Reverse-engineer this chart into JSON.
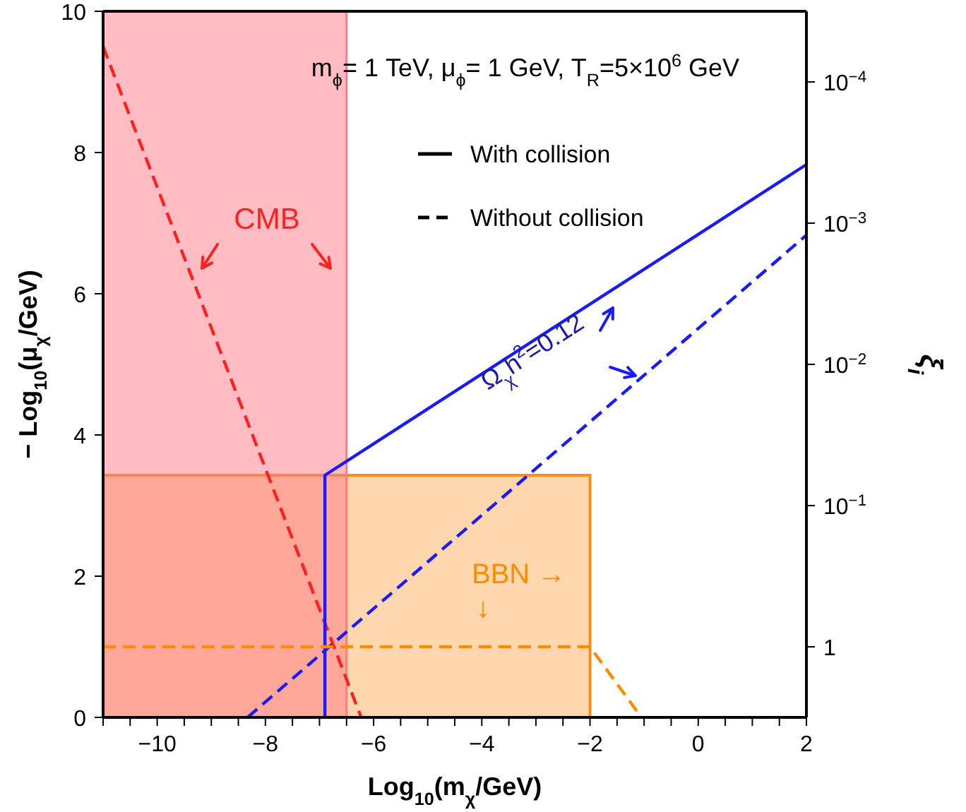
{
  "chart_data": {
    "type": "line",
    "xlabel": "Log$_{10}$(m$_{χ}$/GeV)",
    "ylabel": "− Log$_{10}$(μ$_{χ}$/GeV)",
    "y2label": "ξ$_{i}$",
    "xlim": [
      -11,
      2
    ],
    "xticks": [
      {
        "value": -11,
        "label": null
      },
      {
        "value": -10.5,
        "label": null
      },
      {
        "value": -10,
        "label": "−10"
      },
      {
        "value": -9.5,
        "label": null
      },
      {
        "value": -9,
        "label": null
      },
      {
        "value": -8.5,
        "label": null
      },
      {
        "value": -8,
        "label": "−8"
      },
      {
        "value": -7.5,
        "label": null
      },
      {
        "value": -7,
        "label": null
      },
      {
        "value": -6.5,
        "label": null
      },
      {
        "value": -6,
        "label": "−6"
      },
      {
        "value": -5.5,
        "label": null
      },
      {
        "value": -5,
        "label": null
      },
      {
        "value": -4.5,
        "label": null
      },
      {
        "value": -4,
        "label": "−4"
      },
      {
        "value": -3.5,
        "label": null
      },
      {
        "value": -3,
        "label": null
      },
      {
        "value": -2.5,
        "label": null
      },
      {
        "value": -2,
        "label": "−2"
      },
      {
        "value": -1.5,
        "label": null
      },
      {
        "value": -1,
        "label": null
      },
      {
        "value": -0.5,
        "label": null
      },
      {
        "value": 0,
        "label": "0"
      },
      {
        "value": 0.5,
        "label": null
      },
      {
        "value": 1,
        "label": null
      },
      {
        "value": 1.5,
        "label": null
      },
      {
        "value": 2,
        "label": "2"
      }
    ],
    "ylim": [
      0,
      10
    ],
    "yticks": [
      0,
      2,
      4,
      6,
      8,
      10
    ],
    "y2lim": [
      3.16,
      3.16e-05
    ],
    "y2ticks": [
      {
        "value": 0.0001,
        "label": "10$^{−4}$"
      },
      {
        "value": 0.001,
        "label": "10$^{−3}$"
      },
      {
        "value": 0.01,
        "label": "10$^{−2}$"
      },
      {
        "value": 0.1,
        "label": "10$^{−1}$"
      },
      {
        "value": 1,
        "label": "1"
      }
    ],
    "log": "y2",
    "bands": [
      {
        "axis": "x",
        "from": -11,
        "to": -6.5,
        "color": "#ff7a85"
      }
    ],
    "series": [
      {
        "color": "#ff2020",
        "line_style": "dashed",
        "x": [
          -11,
          -6.23
        ],
        "values": [
          9.5,
          0
        ]
      },
      {
        "color": "#1a1aff",
        "line_style": "solid",
        "x": [
          -6.9,
          -6.9,
          2
        ],
        "values": [
          0,
          3.43,
          7.83
        ]
      },
      {
        "color": "#1a1aff",
        "line_style": "dashed",
        "x": [
          -8.33,
          2
        ],
        "values": [
          0,
          6.83
        ]
      },
      {
        "color": "#ff8c00",
        "line_style": "dashed",
        "x": [
          -11,
          -2,
          -1.05
        ],
        "values": [
          1,
          1,
          0
        ]
      },
      {
        "type": "area",
        "color": "#ff8c1a",
        "x": [
          -11,
          -2,
          -2
        ],
        "values": [
          3.43,
          3.43,
          0
        ]
      }
    ],
    "annotations": [
      "m$_{ϕ}$= 1 TeV, μ$_{ϕ}$= 1 GeV, T$_{R}$=5×10$^{6}$ GeV",
      "With collision",
      "Without collision",
      "CMB",
      "Ω$_{χ}$h$^{2}$=0.12",
      "BBN →",
      "↓"
    ]
  }
}
